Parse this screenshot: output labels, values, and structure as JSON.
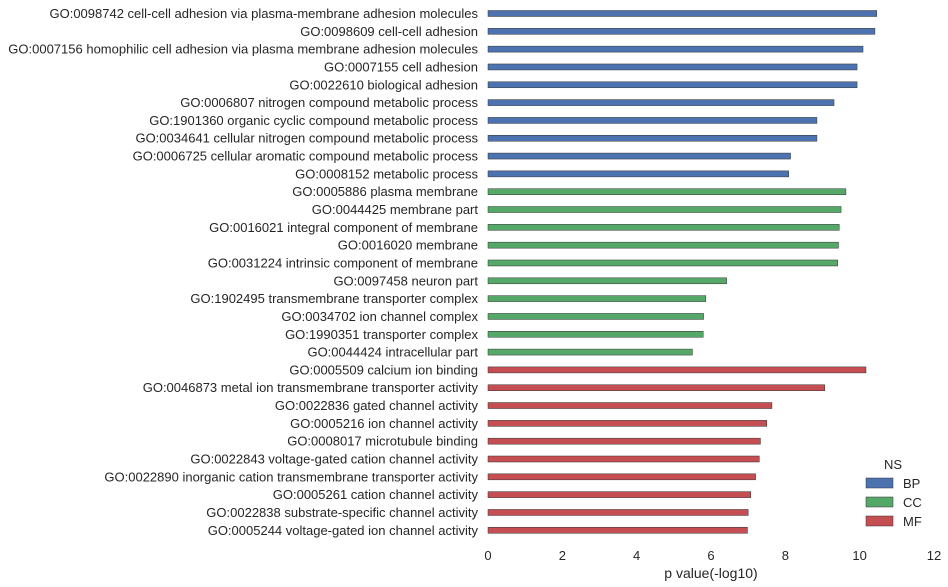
{
  "chart_data": {
    "type": "bar",
    "orientation": "horizontal",
    "xlabel": "p value(-log10)",
    "ylabel": "",
    "xlim": [
      0,
      12
    ],
    "xticks": [
      0,
      2,
      4,
      6,
      8,
      10,
      12
    ],
    "grid": false,
    "legend": {
      "title": "NS",
      "placement": "bottom-right"
    },
    "categories": [
      "GO:0098742 cell-cell adhesion via plasma-membrane adhesion molecules",
      "GO:0098609 cell-cell adhesion",
      "GO:0007156 homophilic cell adhesion via plasma membrane adhesion molecules",
      "GO:0007155 cell adhesion",
      "GO:0022610 biological adhesion",
      "GO:0006807 nitrogen compound metabolic process",
      "GO:1901360 organic cyclic compound metabolic process",
      "GO:0034641 cellular nitrogen compound metabolic process",
      "GO:0006725 cellular aromatic compound metabolic process",
      "GO:0008152 metabolic process",
      "GO:0005886 plasma membrane",
      "GO:0044425 membrane part",
      "GO:0016021 integral component of membrane",
      "GO:0016020 membrane",
      "GO:0031224 intrinsic component of membrane",
      "GO:0097458 neuron part",
      "GO:1902495 transmembrane transporter complex",
      "GO:0034702 ion channel complex",
      "GO:1990351 transporter complex",
      "GO:0044424 intracellular part",
      "GO:0005509 calcium ion binding",
      "GO:0046873 metal ion transmembrane transporter activity",
      "GO:0022836 gated channel activity",
      "GO:0005216 ion channel activity",
      "GO:0008017 microtubule binding",
      "GO:0022843 voltage-gated cation channel activity",
      "GO:0022890 inorganic cation transmembrane transporter activity",
      "GO:0005261 cation channel activity",
      "GO:0022838 substrate-specific channel activity",
      "GO:0005244 voltage-gated ion channel activity"
    ],
    "values": [
      10.46,
      10.41,
      10.09,
      9.93,
      9.93,
      9.31,
      8.85,
      8.85,
      8.14,
      8.09,
      9.63,
      9.5,
      9.45,
      9.43,
      9.41,
      6.42,
      5.86,
      5.8,
      5.79,
      5.5,
      10.17,
      9.06,
      7.64,
      7.5,
      7.33,
      7.3,
      7.2,
      7.07,
      7.0,
      6.98
    ],
    "groups": [
      "BP",
      "BP",
      "BP",
      "BP",
      "BP",
      "BP",
      "BP",
      "BP",
      "BP",
      "BP",
      "CC",
      "CC",
      "CC",
      "CC",
      "CC",
      "CC",
      "CC",
      "CC",
      "CC",
      "CC",
      "MF",
      "MF",
      "MF",
      "MF",
      "MF",
      "MF",
      "MF",
      "MF",
      "MF",
      "MF"
    ],
    "series": [
      {
        "name": "BP",
        "color": "#4c72b0"
      },
      {
        "name": "CC",
        "color": "#55a868"
      },
      {
        "name": "MF",
        "color": "#c44e52"
      }
    ]
  }
}
